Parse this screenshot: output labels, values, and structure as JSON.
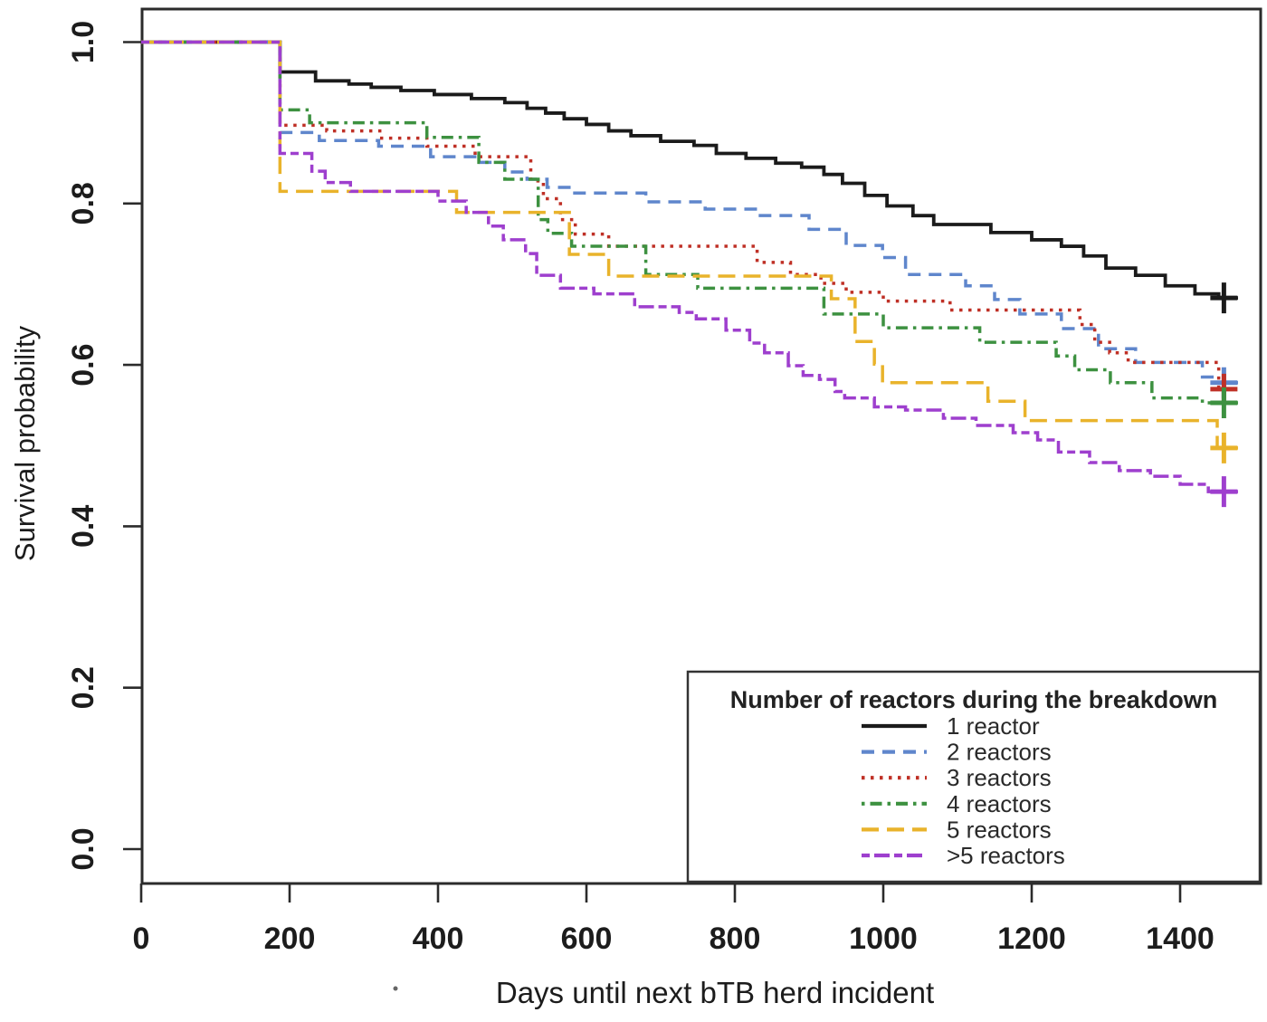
{
  "chart_data": {
    "type": "line",
    "subtype": "kaplan-meier-step-survival",
    "title": "",
    "xlabel": "Days until next bTB herd incident",
    "ylabel": "Survival probability",
    "xlim": [
      0,
      1510
    ],
    "ylim": [
      0.0,
      1.0
    ],
    "x_ticks": [
      0,
      200,
      400,
      600,
      800,
      1000,
      1200,
      1400
    ],
    "y_ticks": [
      "0.0",
      "0.2",
      "0.4",
      "0.6",
      "0.8",
      "1.0"
    ],
    "grid": false,
    "legend_title": "Number of reactors during the breakdown",
    "legend_position": "bottom-right",
    "censor_marker": "+",
    "censor_day": 1459,
    "curve_end_day": 1478,
    "series": [
      {
        "name": "1 reactor",
        "color": "#1b1b1b",
        "linestyle": "solid",
        "final_value": 0.683,
        "points": [
          [
            0,
            1.0
          ],
          [
            187,
            0.963
          ],
          [
            235,
            0.952
          ],
          [
            280,
            0.948
          ],
          [
            310,
            0.944
          ],
          [
            350,
            0.94
          ],
          [
            395,
            0.935
          ],
          [
            445,
            0.93
          ],
          [
            490,
            0.925
          ],
          [
            520,
            0.918
          ],
          [
            545,
            0.912
          ],
          [
            570,
            0.905
          ],
          [
            600,
            0.898
          ],
          [
            630,
            0.89
          ],
          [
            660,
            0.884
          ],
          [
            700,
            0.877
          ],
          [
            745,
            0.872
          ],
          [
            775,
            0.862
          ],
          [
            815,
            0.856
          ],
          [
            855,
            0.85
          ],
          [
            890,
            0.845
          ],
          [
            920,
            0.836
          ],
          [
            945,
            0.825
          ],
          [
            975,
            0.81
          ],
          [
            1005,
            0.797
          ],
          [
            1040,
            0.785
          ],
          [
            1068,
            0.774
          ],
          [
            1145,
            0.764
          ],
          [
            1200,
            0.755
          ],
          [
            1240,
            0.747
          ],
          [
            1270,
            0.735
          ],
          [
            1300,
            0.72
          ],
          [
            1340,
            0.711
          ],
          [
            1380,
            0.698
          ],
          [
            1420,
            0.688
          ],
          [
            1452,
            0.683
          ]
        ]
      },
      {
        "name": "2 reactors",
        "color": "#5f86cc",
        "linestyle": "dashed",
        "final_value": 0.578,
        "points": [
          [
            0,
            1.0
          ],
          [
            187,
            0.888
          ],
          [
            240,
            0.878
          ],
          [
            320,
            0.871
          ],
          [
            390,
            0.858
          ],
          [
            455,
            0.851
          ],
          [
            490,
            0.839
          ],
          [
            520,
            0.83
          ],
          [
            547,
            0.82
          ],
          [
            580,
            0.813
          ],
          [
            680,
            0.802
          ],
          [
            760,
            0.793
          ],
          [
            830,
            0.785
          ],
          [
            900,
            0.768
          ],
          [
            950,
            0.748
          ],
          [
            999,
            0.733
          ],
          [
            1030,
            0.712
          ],
          [
            1111,
            0.698
          ],
          [
            1150,
            0.681
          ],
          [
            1184,
            0.663
          ],
          [
            1240,
            0.645
          ],
          [
            1290,
            0.62
          ],
          [
            1340,
            0.603
          ],
          [
            1430,
            0.585
          ],
          [
            1448,
            0.578
          ]
        ]
      },
      {
        "name": "3 reactors",
        "color": "#bf3026",
        "linestyle": "dotted",
        "final_value": 0.57,
        "points": [
          [
            0,
            1.0
          ],
          [
            187,
            0.897
          ],
          [
            250,
            0.89
          ],
          [
            324,
            0.881
          ],
          [
            385,
            0.871
          ],
          [
            450,
            0.858
          ],
          [
            525,
            0.828
          ],
          [
            542,
            0.806
          ],
          [
            565,
            0.78
          ],
          [
            585,
            0.762
          ],
          [
            630,
            0.747
          ],
          [
            830,
            0.727
          ],
          [
            875,
            0.712
          ],
          [
            916,
            0.701
          ],
          [
            950,
            0.69
          ],
          [
            1000,
            0.679
          ],
          [
            1090,
            0.668
          ],
          [
            1265,
            0.65
          ],
          [
            1285,
            0.628
          ],
          [
            1305,
            0.615
          ],
          [
            1330,
            0.603
          ],
          [
            1452,
            0.57
          ]
        ]
      },
      {
        "name": "4 reactors",
        "color": "#3d9140",
        "linestyle": "dotdash",
        "final_value": 0.553,
        "points": [
          [
            0,
            1.0
          ],
          [
            187,
            0.916
          ],
          [
            227,
            0.9
          ],
          [
            385,
            0.882
          ],
          [
            455,
            0.851
          ],
          [
            490,
            0.83
          ],
          [
            535,
            0.78
          ],
          [
            548,
            0.763
          ],
          [
            580,
            0.747
          ],
          [
            680,
            0.712
          ],
          [
            750,
            0.695
          ],
          [
            920,
            0.663
          ],
          [
            1000,
            0.646
          ],
          [
            1130,
            0.628
          ],
          [
            1233,
            0.611
          ],
          [
            1258,
            0.594
          ],
          [
            1306,
            0.578
          ],
          [
            1362,
            0.559
          ],
          [
            1430,
            0.553
          ]
        ]
      },
      {
        "name": "5 reactors",
        "color": "#e9b32b",
        "linestyle": "longdash",
        "final_value": 0.497,
        "points": [
          [
            0,
            1.0
          ],
          [
            187,
            0.815
          ],
          [
            425,
            0.789
          ],
          [
            577,
            0.737
          ],
          [
            630,
            0.71
          ],
          [
            930,
            0.682
          ],
          [
            962,
            0.629
          ],
          [
            988,
            0.601
          ],
          [
            999,
            0.578
          ],
          [
            1141,
            0.555
          ],
          [
            1191,
            0.531
          ],
          [
            1450,
            0.497
          ]
        ]
      },
      {
        "name": ">5 reactors",
        "color": "#9e3fce",
        "linestyle": "twodash",
        "final_value": 0.443,
        "points": [
          [
            0,
            1.0
          ],
          [
            187,
            0.862
          ],
          [
            230,
            0.84
          ],
          [
            248,
            0.826
          ],
          [
            282,
            0.815
          ],
          [
            400,
            0.803
          ],
          [
            438,
            0.789
          ],
          [
            468,
            0.772
          ],
          [
            488,
            0.755
          ],
          [
            518,
            0.738
          ],
          [
            533,
            0.711
          ],
          [
            565,
            0.695
          ],
          [
            610,
            0.688
          ],
          [
            665,
            0.672
          ],
          [
            725,
            0.665
          ],
          [
            748,
            0.657
          ],
          [
            788,
            0.643
          ],
          [
            820,
            0.627
          ],
          [
            840,
            0.615
          ],
          [
            872,
            0.599
          ],
          [
            892,
            0.587
          ],
          [
            914,
            0.582
          ],
          [
            935,
            0.567
          ],
          [
            948,
            0.559
          ],
          [
            988,
            0.548
          ],
          [
            1030,
            0.544
          ],
          [
            1081,
            0.534
          ],
          [
            1125,
            0.525
          ],
          [
            1175,
            0.516
          ],
          [
            1208,
            0.507
          ],
          [
            1236,
            0.492
          ],
          [
            1278,
            0.479
          ],
          [
            1318,
            0.469
          ],
          [
            1360,
            0.462
          ],
          [
            1400,
            0.452
          ],
          [
            1438,
            0.443
          ]
        ]
      }
    ]
  }
}
